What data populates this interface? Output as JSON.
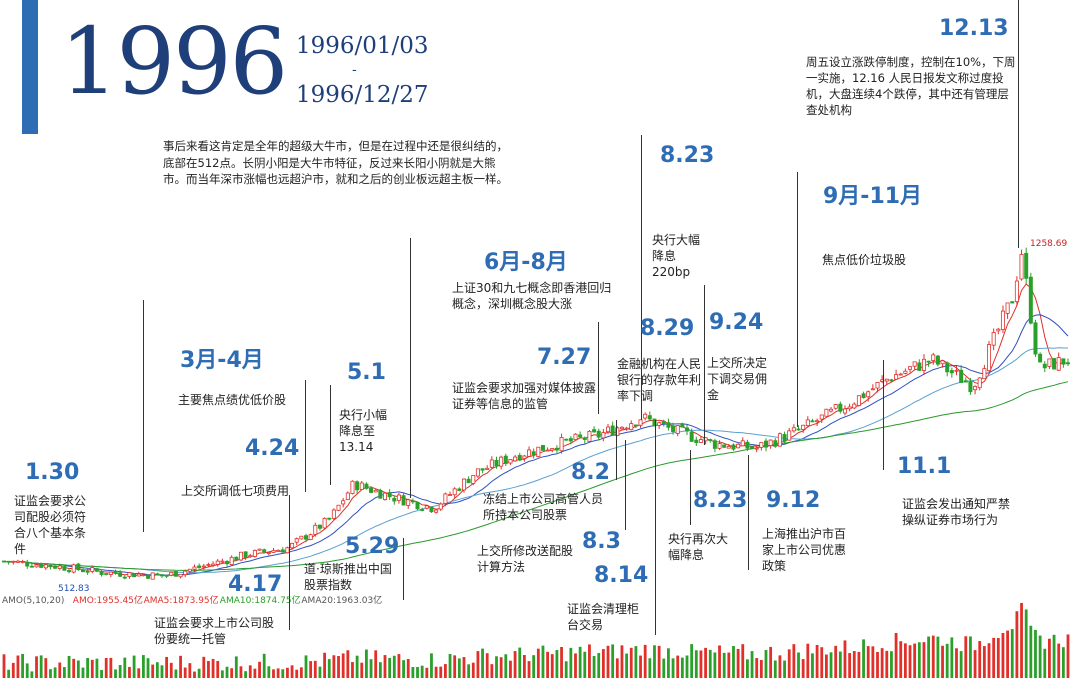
{
  "header": {
    "year": "1996",
    "date_start": "1996/01/03",
    "date_sep": "-",
    "date_end": "1996/12/27"
  },
  "intro": "事后来看这肯定是全年的超级大牛市，但是在过程中还是很纠结的，底部在512点。长阴小阳是大牛市特征，反过来长阳小阴就是大熊市。而当年深市涨幅也远超沪市，就和之后的创业板远超主板一样。",
  "annotations": [
    {
      "date": "1.30",
      "text": "证监会要求公司配股必须符合八个基本条件"
    },
    {
      "date": "3月-4月",
      "text": "主要焦点绩优低价股"
    },
    {
      "date": "4.24",
      "text": "上交所调低七项费用"
    },
    {
      "date": "4.17",
      "text": "证监会要求上市公司股份要统一托管"
    },
    {
      "date": "5.1",
      "text": "央行小幅降息至13.14"
    },
    {
      "date": "5.29",
      "text": "道·琼斯推出中国股票指数"
    },
    {
      "date": "6月-8月",
      "text": "上证30和九七概念即香港回归概念，深圳概念股大涨"
    },
    {
      "date": "7.27",
      "text": "证监会要求加强对媒体披露证券等信息的监管"
    },
    {
      "date": "8.2",
      "text": "冻结上市公司高管人员所持本公司股票"
    },
    {
      "date": "8.3",
      "text": "上交所修改送配股计算方法"
    },
    {
      "date": "8.14",
      "text": "证监会清理柜台交易"
    },
    {
      "date": "8.23",
      "text": "央行大幅降息220bp"
    },
    {
      "date": "8.29",
      "text": "金融机构在人民银行的存款年利率下调"
    },
    {
      "date": "8.23",
      "text": "央行再次大幅降息"
    },
    {
      "date": "9.24",
      "text": "上交所决定下调交易佣金"
    },
    {
      "date": "9月-11月",
      "text": "焦点低价垃圾股"
    },
    {
      "date": "9.12",
      "text": "上海推出沪市百家上市公司优惠政策"
    },
    {
      "date": "11.1",
      "text": "证监会发出通知严禁操纵证券市场行为"
    },
    {
      "date": "12.13",
      "text": "周五设立涨跌停制度，控制在10%，下周一实施，12.16 人民日报发文称过度投机，大盘连续4个跌停，其中还有管理层查处机构"
    }
  ],
  "chart_data": {
    "type": "line",
    "title": "",
    "xlabel": "",
    "ylabel": "",
    "x": [
      "1996-01-03",
      "1996-01-19",
      "1996-02-05",
      "1996-02-26",
      "1996-03-11",
      "1996-03-25",
      "1996-04-08",
      "1996-04-22",
      "1996-04-30",
      "1996-05-13",
      "1996-05-27",
      "1996-06-10",
      "1996-06-24",
      "1996-07-08",
      "1996-07-22",
      "1996-08-05",
      "1996-08-16",
      "1996-08-30",
      "1996-09-13",
      "1996-09-27",
      "1996-10-14",
      "1996-10-28",
      "1996-11-11",
      "1996-11-25",
      "1996-12-09",
      "1996-12-11",
      "1996-12-17",
      "1996-12-27"
    ],
    "series": [
      {
        "name": "",
        "values": [
          545,
          535,
          520,
          512,
          535,
          560,
          575,
          640,
          720,
          690,
          665,
          745,
          785,
          810,
          830,
          870,
          840,
          810,
          800,
          840,
          900,
          960,
          1000,
          940,
          1150,
          1258.69,
          980,
          1000
        ]
      }
    ],
    "max_label": "1258.69",
    "min_label": "512.83",
    "volume_legend": [
      "AMO(5,10,20)",
      "AMO:1955.45亿",
      "AMA5:1873.95亿",
      "AMA10:1874.75亿",
      "AMA20:1963.03亿"
    ],
    "volume_colors": [
      "#555555",
      "#e0302a",
      "#e0302a",
      "#2aa02a",
      "#555555"
    ],
    "colors": {
      "up": "#e0302a",
      "down": "#2aa02a",
      "ma_blue": "#3050c0",
      "ma_green": "#2a9a2a",
      "accent": "#2e6db4"
    }
  }
}
